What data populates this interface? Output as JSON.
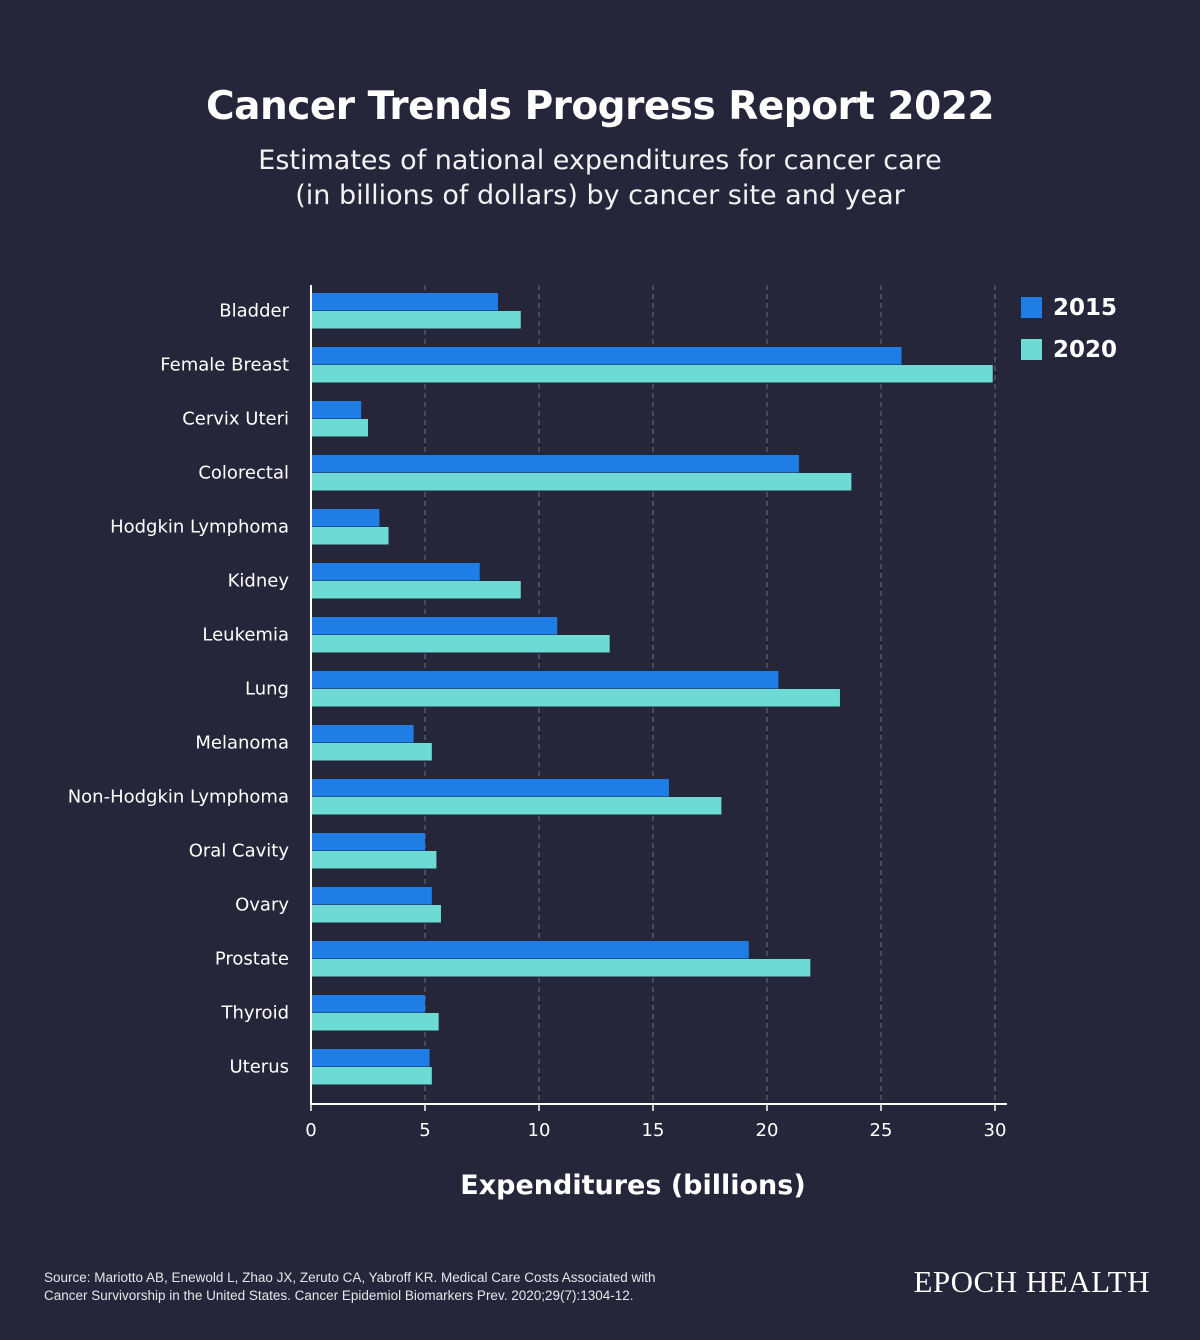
{
  "header": {
    "title": "Cancer Trends Progress Report 2022",
    "subtitle_line1": "Estimates of national expenditures for cancer care",
    "subtitle_line2": "(in billions of dollars) by cancer site and year"
  },
  "colors": {
    "background": "#252639",
    "series_2015": "#1f7de6",
    "series_2020": "#6ddbd4"
  },
  "chart_data": {
    "type": "bar",
    "orientation": "horizontal",
    "categories": [
      "Bladder",
      "Female Breast",
      "Cervix Uteri",
      "Colorectal",
      "Hodgkin Lymphoma",
      "Kidney",
      "Leukemia",
      "Lung",
      "Melanoma",
      "Non-Hodgkin Lymphoma",
      "Oral Cavity",
      "Ovary",
      "Prostate",
      "Thyroid",
      "Uterus"
    ],
    "series": [
      {
        "name": "2015",
        "values": [
          8.2,
          25.9,
          2.2,
          21.4,
          3.0,
          7.4,
          10.8,
          20.5,
          4.5,
          15.7,
          5.0,
          5.3,
          19.2,
          5.0,
          5.2
        ]
      },
      {
        "name": "2020",
        "values": [
          9.2,
          29.9,
          2.5,
          23.7,
          3.4,
          9.2,
          13.1,
          23.2,
          5.3,
          18.0,
          5.5,
          5.7,
          21.9,
          5.6,
          5.3
        ]
      }
    ],
    "xlabel": "Expenditures (billions)",
    "ylabel": "",
    "xlim": [
      0,
      30
    ],
    "xticks": [
      "0",
      "5",
      "10",
      "15",
      "20",
      "25",
      "30"
    ],
    "grid": "vertical dashed",
    "legend": "top-right"
  },
  "footer": {
    "source_line1": "Source: Mariotto AB, Enewold L, Zhao JX, Zeruto CA, Yabroff KR. Medical Care Costs Associated with",
    "source_line2": "Cancer Survivorship in the United States. Cancer Epidemiol Biomarkers Prev. 2020;29(7):1304-12.",
    "brand": "EPOCH HEALTH"
  }
}
